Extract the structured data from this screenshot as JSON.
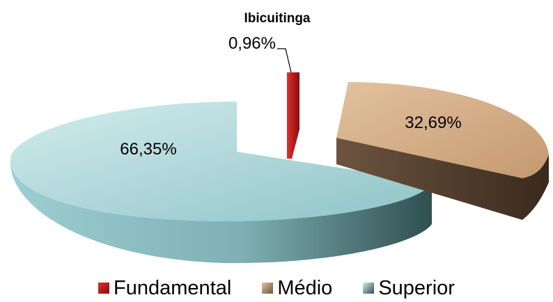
{
  "chart_data": {
    "type": "pie",
    "title": "",
    "subtitle": "Ibicuitinga",
    "categories": [
      "Fundamental",
      "Médio",
      "Superior"
    ],
    "values": [
      0.96,
      32.69,
      66.35
    ],
    "value_labels": [
      "0,96%",
      "32,69%",
      "66,35%"
    ],
    "colors": {
      "Fundamental": "#c41818",
      "Médio": "#c9a07a",
      "Superior": "#8fc5c8"
    },
    "exploded": true,
    "three_d": true,
    "legend": "bottom"
  }
}
